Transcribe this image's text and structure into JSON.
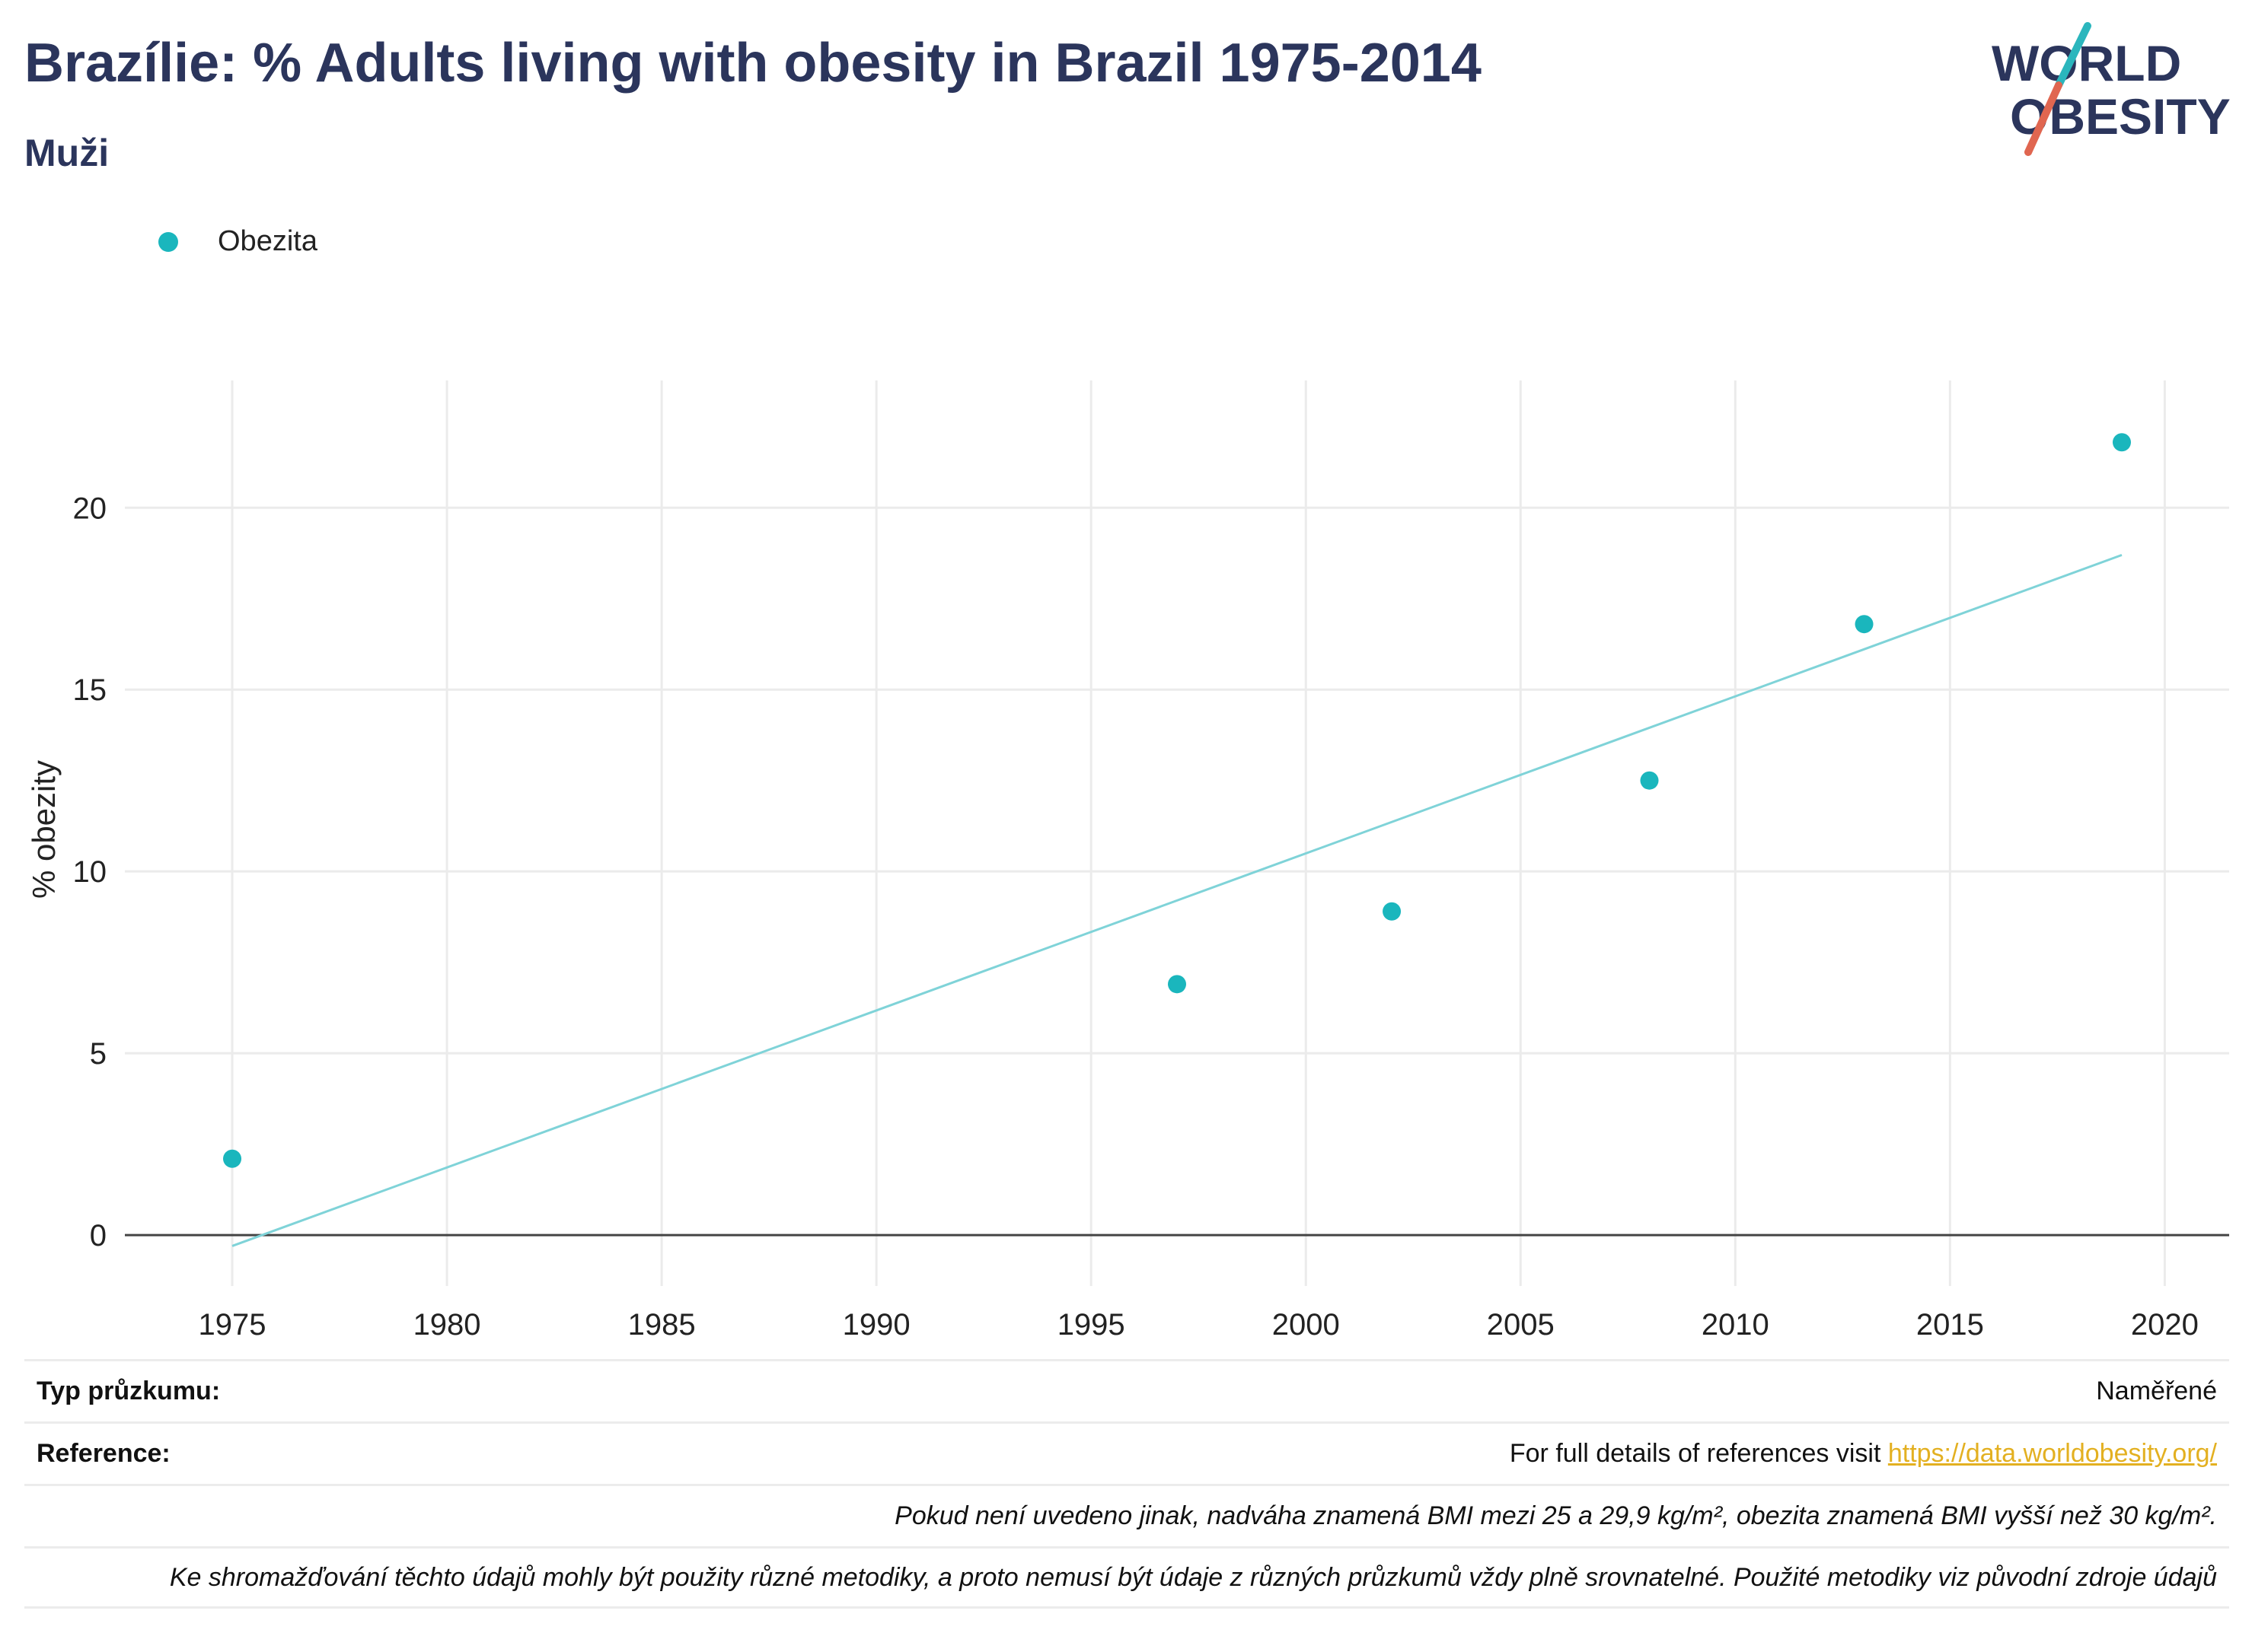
{
  "header": {
    "title": "Brazílie: % Adults living with obesity in Brazil 1975-2014",
    "subtitle": "Muži"
  },
  "logo": {
    "line1": "WORLD",
    "line2": "OBESITY",
    "slash_top_color": "#2bb6bd",
    "slash_bottom_color": "#e06650"
  },
  "legend": {
    "items": [
      {
        "label": "Obezita",
        "color": "#1ab6bd"
      }
    ]
  },
  "chart_data": {
    "type": "scatter",
    "ylabel": "% obezity",
    "xlabel": "",
    "xlim": [
      1972.5,
      2021.5
    ],
    "ylim": [
      -1.4,
      23.5
    ],
    "xticks": [
      1975,
      1980,
      1985,
      1990,
      1995,
      2000,
      2005,
      2010,
      2015,
      2020
    ],
    "yticks": [
      0,
      5,
      10,
      15,
      20
    ],
    "grid": true,
    "legend_position": "top-left",
    "series": [
      {
        "name": "Obezita",
        "color": "#1ab6bd",
        "points": [
          {
            "x": 1975,
            "y": 2.1
          },
          {
            "x": 1997,
            "y": 6.9
          },
          {
            "x": 2002,
            "y": 8.9
          },
          {
            "x": 2008,
            "y": 12.5
          },
          {
            "x": 2013,
            "y": 16.8
          },
          {
            "x": 2019,
            "y": 21.8
          }
        ]
      }
    ],
    "trendline": {
      "color": "#7fd3d8",
      "start": {
        "x": 1975,
        "y": -0.3
      },
      "end": {
        "x": 2019,
        "y": 18.7
      }
    }
  },
  "info": {
    "survey_label": "Typ průzkumu:",
    "survey_value": "Naměřené",
    "reference_label": "Reference:",
    "reference_text": "For full details of references visit ",
    "reference_link": "https://data.worldobesity.org/",
    "note1": "Pokud není uvedeno jinak, nadváha znamená BMI mezi 25 a 29,9 kg/m², obezita znamená BMI vyšší než 30 kg/m².",
    "note2": "Ke shromažďování těchto údajů mohly být použity různé metodiky, a proto nemusí být údaje z různých průzkumů vždy plně srovnatelné. Použité metodiky viz původní zdroje údajů"
  }
}
